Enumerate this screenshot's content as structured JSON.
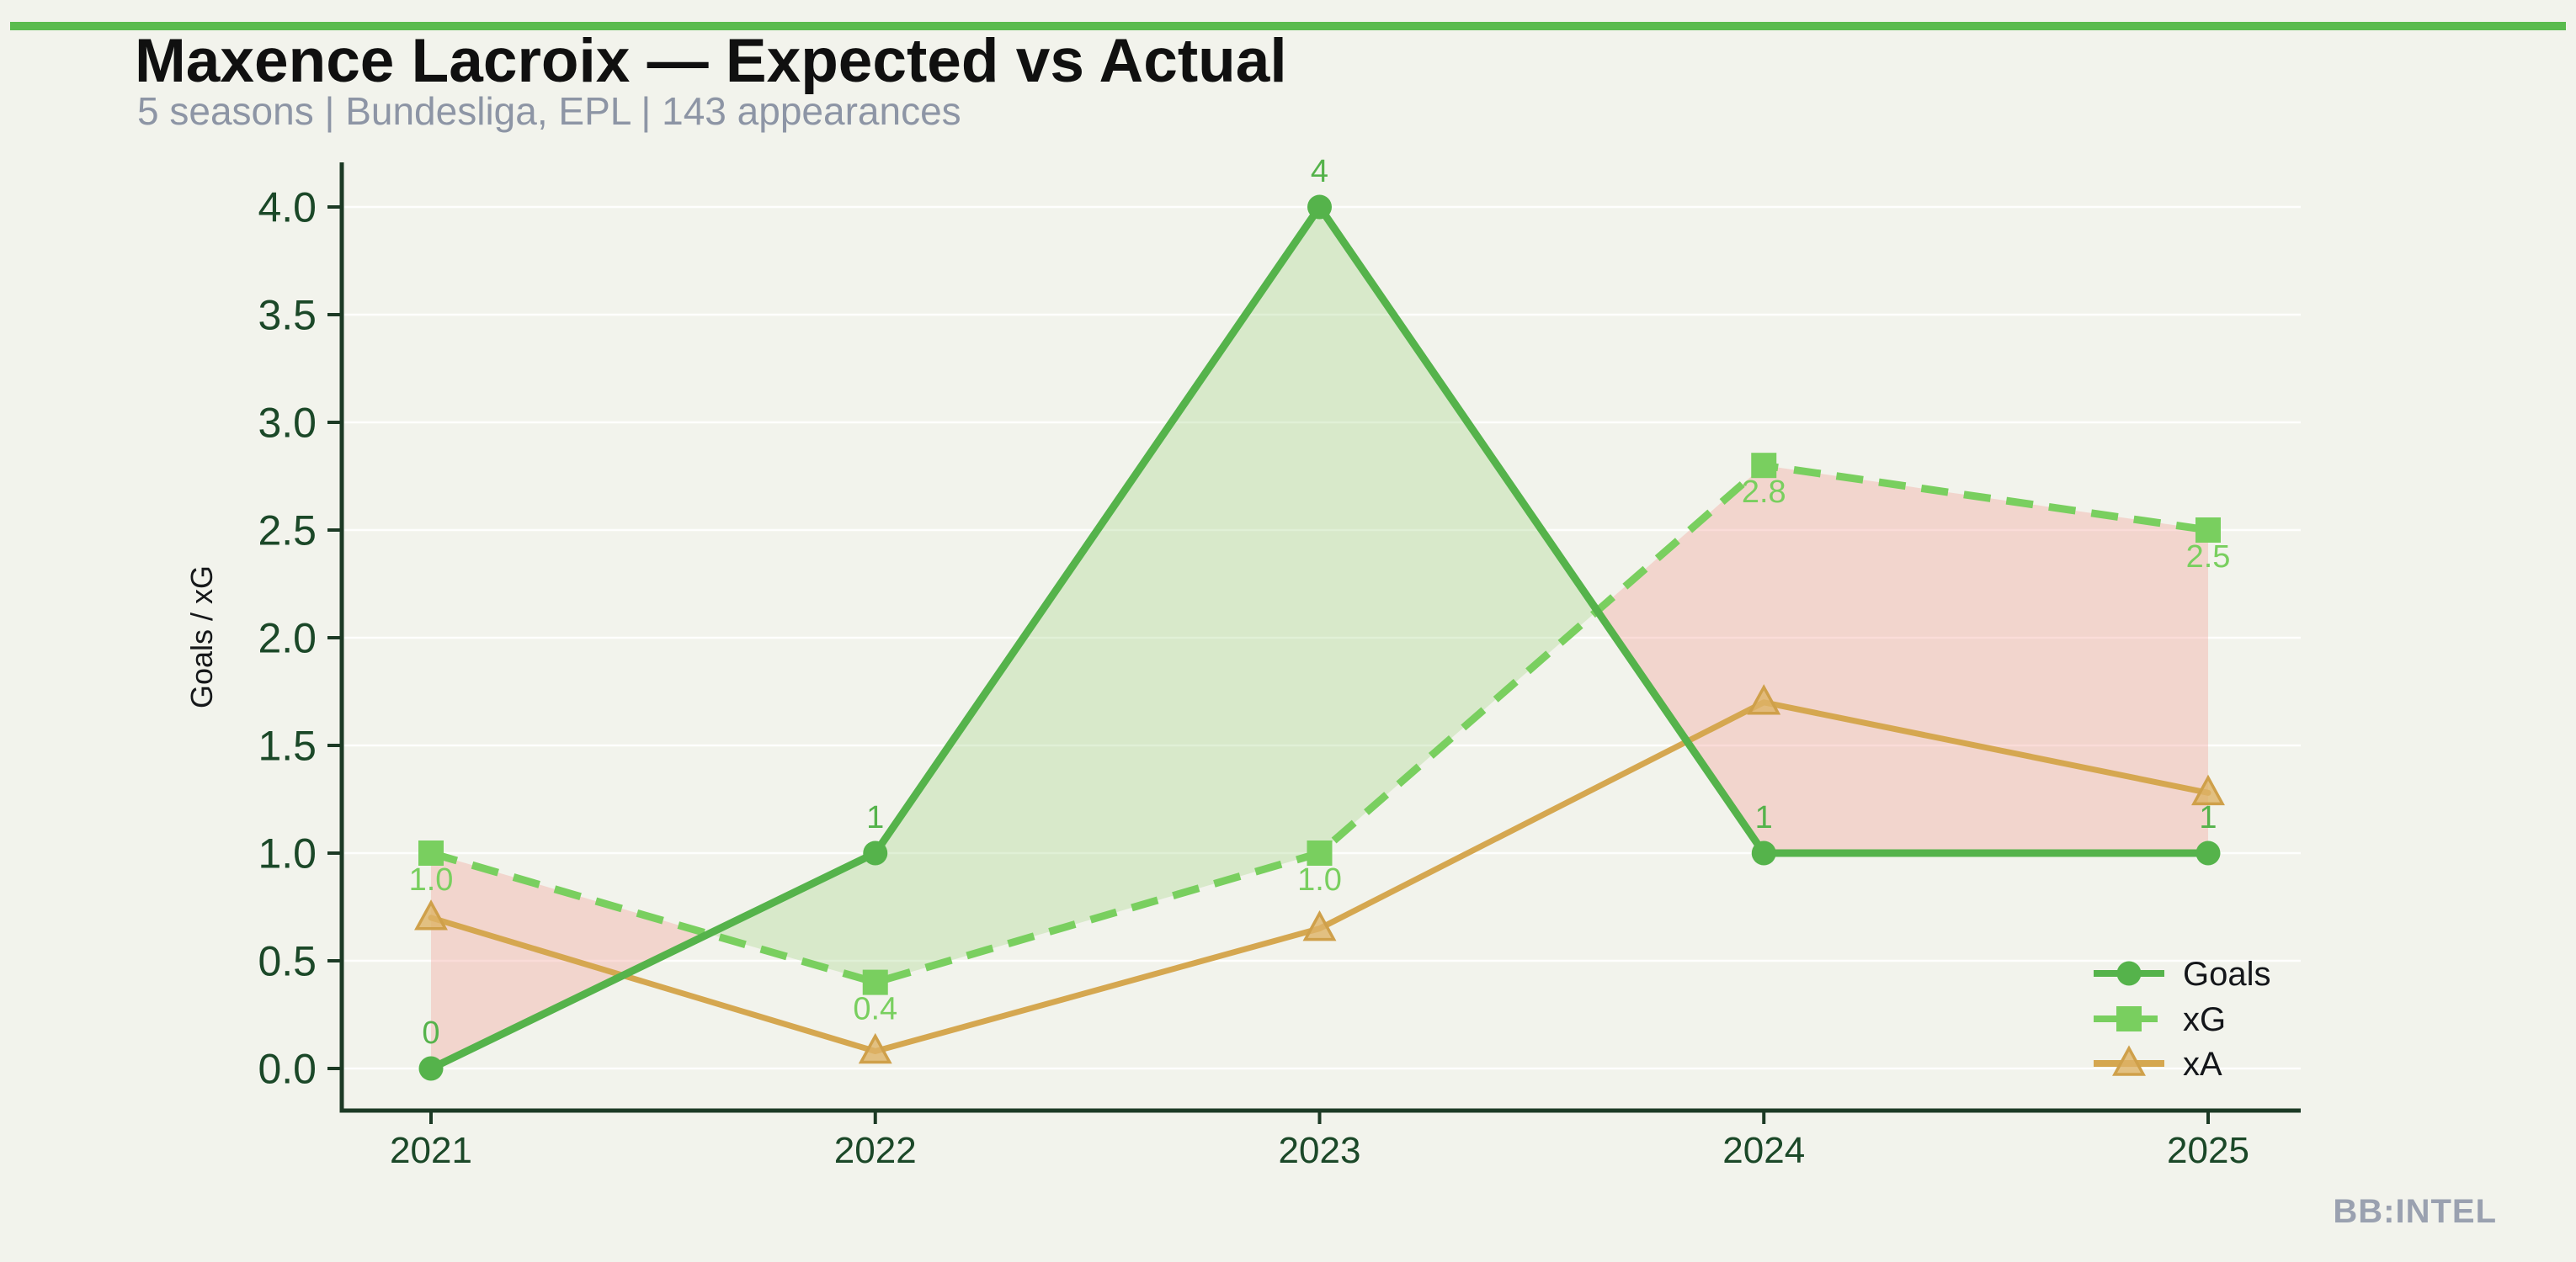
{
  "header": {
    "title": "Maxence Lacroix — Expected vs Actual",
    "subtitle": "5 seasons | Bundesliga, EPL | 143 appearances"
  },
  "footer": {
    "brand": "BB:INTEL"
  },
  "chart_data": {
    "type": "line",
    "title": "Maxence Lacroix — Expected vs Actual",
    "subtitle": "5 seasons | Bundesliga, EPL | 143 appearances",
    "ylabel": "Goals / xG",
    "x_categories": [
      "2021",
      "2022",
      "2023",
      "2024",
      "2025"
    ],
    "ylim": [
      0,
      4.0
    ],
    "yticks": [
      "0.0",
      "0.5",
      "1.0",
      "1.5",
      "2.0",
      "2.5",
      "3.0",
      "3.5",
      "4.0"
    ],
    "grid": "faint-horizontal",
    "legend": {
      "position": "lower-right",
      "entries": [
        "Goals",
        "xG",
        "xA"
      ]
    },
    "series": [
      {
        "name": "Goals",
        "line_style": "solid",
        "marker": "circle",
        "color": "#55b34b",
        "values": [
          0,
          1,
          4,
          1,
          1
        ],
        "point_labels": [
          "0",
          "1",
          "4",
          "1",
          "1"
        ],
        "label_side": "above"
      },
      {
        "name": "xG",
        "line_style": "dashed",
        "marker": "square",
        "color": "#79cf5f",
        "values": [
          1.0,
          0.4,
          1.0,
          2.8,
          2.5
        ],
        "point_labels": [
          "1.0",
          "0.4",
          "1.0",
          "2.8",
          "2.5"
        ],
        "label_side": "below"
      },
      {
        "name": "xA",
        "line_style": "solid",
        "marker": "triangle-up",
        "color": "#d5a750",
        "values": [
          0.7,
          0.08,
          0.65,
          1.7,
          1.28
        ],
        "point_labels": null,
        "label_side": null
      }
    ],
    "fill_between": {
      "pair": [
        "Goals",
        "xG"
      ],
      "positive_color": "rgba(170,215,140,0.35)",
      "negative_color": "rgba(242,150,140,0.32)",
      "description": "green where Goals > xG, pink where xG > Goals"
    },
    "colors": {
      "background": "#f2f3ec",
      "accent_bar": "#5abb4e",
      "axis": "#1c3a25",
      "tick_labels": "#1b4828",
      "title": "#101010",
      "subtitle": "#8d95a5",
      "brand": "#9aa1b0",
      "grid": "rgba(255,255,255,0.9)",
      "legend_text": "#14161a",
      "ylabel_text": "#16181a",
      "triangle_fill": "rgba(221,179,102,0.8)",
      "triangle_edge": "#cfa04a"
    }
  }
}
